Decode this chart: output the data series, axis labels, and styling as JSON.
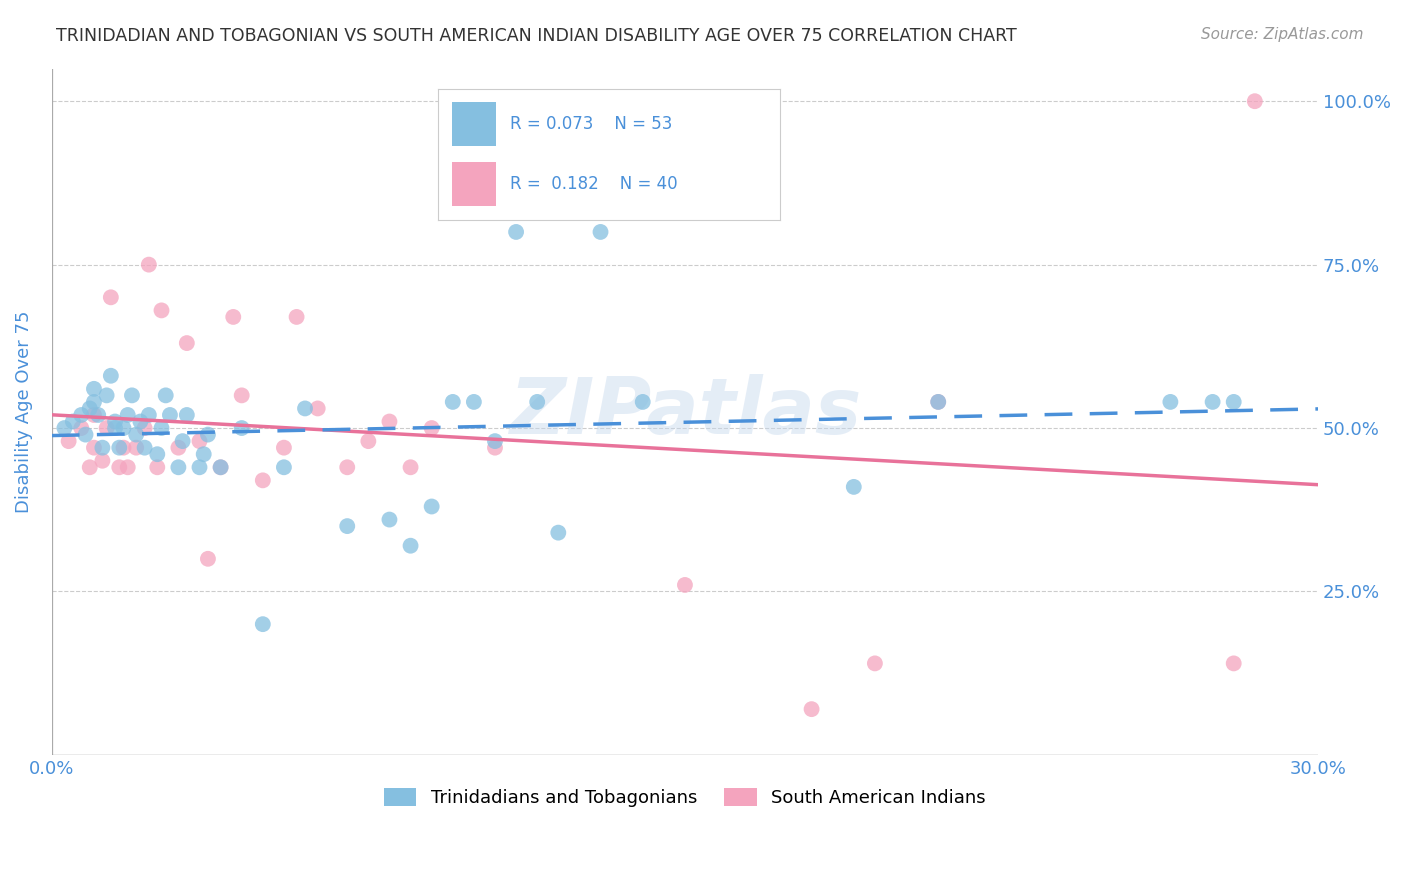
{
  "title": "TRINIDADIAN AND TOBAGONIAN VS SOUTH AMERICAN INDIAN DISABILITY AGE OVER 75 CORRELATION CHART",
  "source": "Source: ZipAtlas.com",
  "ylabel": "Disability Age Over 75",
  "xlim": [
    0.0,
    0.3
  ],
  "ylim": [
    0.0,
    1.05
  ],
  "blue_color": "#85bfe0",
  "pink_color": "#f4a4be",
  "line_blue": "#4a90d9",
  "line_pink": "#e8729a",
  "dot_size": 130,
  "blue_x": [
    0.003,
    0.005,
    0.007,
    0.008,
    0.009,
    0.01,
    0.01,
    0.011,
    0.012,
    0.013,
    0.014,
    0.015,
    0.015,
    0.016,
    0.017,
    0.018,
    0.019,
    0.02,
    0.021,
    0.022,
    0.023,
    0.025,
    0.026,
    0.027,
    0.028,
    0.03,
    0.031,
    0.032,
    0.035,
    0.036,
    0.037,
    0.04,
    0.045,
    0.05,
    0.055,
    0.06,
    0.07,
    0.08,
    0.085,
    0.09,
    0.095,
    0.1,
    0.105,
    0.11,
    0.115,
    0.12,
    0.13,
    0.14,
    0.19,
    0.21,
    0.265,
    0.275,
    0.28
  ],
  "blue_y": [
    0.5,
    0.51,
    0.52,
    0.49,
    0.53,
    0.54,
    0.56,
    0.52,
    0.47,
    0.55,
    0.58,
    0.5,
    0.51,
    0.47,
    0.5,
    0.52,
    0.55,
    0.49,
    0.51,
    0.47,
    0.52,
    0.46,
    0.5,
    0.55,
    0.52,
    0.44,
    0.48,
    0.52,
    0.44,
    0.46,
    0.49,
    0.44,
    0.5,
    0.2,
    0.44,
    0.53,
    0.35,
    0.36,
    0.32,
    0.38,
    0.54,
    0.54,
    0.48,
    0.8,
    0.54,
    0.34,
    0.8,
    0.54,
    0.41,
    0.54,
    0.54,
    0.54,
    0.54
  ],
  "pink_x": [
    0.004,
    0.007,
    0.009,
    0.01,
    0.01,
    0.012,
    0.013,
    0.014,
    0.016,
    0.017,
    0.018,
    0.02,
    0.022,
    0.023,
    0.025,
    0.026,
    0.03,
    0.032,
    0.035,
    0.037,
    0.04,
    0.043,
    0.045,
    0.05,
    0.055,
    0.058,
    0.063,
    0.07,
    0.075,
    0.08,
    0.085,
    0.09,
    0.1,
    0.105,
    0.15,
    0.18,
    0.195,
    0.21,
    0.28,
    0.285
  ],
  "pink_y": [
    0.48,
    0.5,
    0.44,
    0.47,
    0.52,
    0.45,
    0.5,
    0.7,
    0.44,
    0.47,
    0.44,
    0.47,
    0.5,
    0.75,
    0.44,
    0.68,
    0.47,
    0.63,
    0.48,
    0.3,
    0.44,
    0.67,
    0.55,
    0.42,
    0.47,
    0.67,
    0.53,
    0.44,
    0.48,
    0.51,
    0.44,
    0.5,
    1.0,
    0.47,
    0.26,
    0.07,
    0.14,
    0.54,
    0.14,
    1.0
  ],
  "watermark": "ZIPatlas",
  "background_color": "#ffffff",
  "grid_color": "#cccccc",
  "title_color": "#333333",
  "axis_label_color": "#4a90d9",
  "legend1_r": "R = 0.073",
  "legend1_n": "N = 53",
  "legend2_r": "R =  0.182",
  "legend2_n": "N = 40",
  "legend1_label": "Trinidadians and Tobagonians",
  "legend2_label": "South American Indians"
}
